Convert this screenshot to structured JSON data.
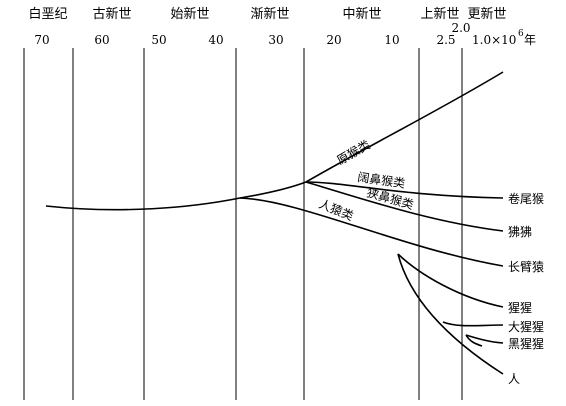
{
  "eras": [
    "白垩纪",
    "古新世",
    "始新世",
    "渐新世",
    "中新世",
    "上新世",
    "更新世"
  ],
  "time_ticks": [
    "70",
    "60",
    "50",
    "40",
    "30",
    "20",
    "10",
    "2.5",
    "2.0",
    "1.0×10",
    "6",
    "年"
  ],
  "branch_labels": [
    "原猴类",
    "阔鼻猴类",
    "狭鼻猴类",
    "人猿类"
  ],
  "species": [
    "卷尾猴",
    "狒狒",
    "长臂猿",
    "猩猩",
    "大猩猩",
    "黑猩猩",
    "人"
  ]
}
